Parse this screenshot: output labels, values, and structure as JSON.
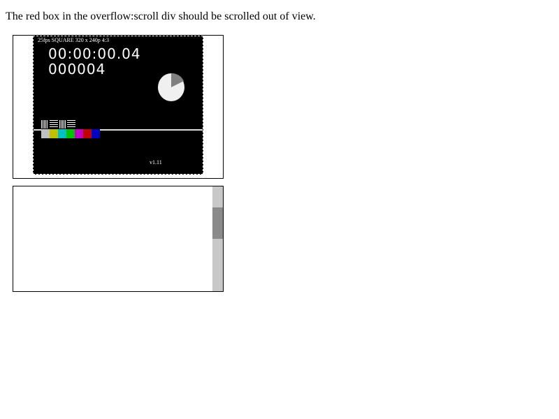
{
  "instruction": "The red box in the overflow:scroll div should be scrolled out of view.",
  "video": {
    "meta_label": "25fps SQUARE 320 x 240p 4:3",
    "timecode": "00:00:00.04",
    "frame_count": "000004",
    "version": "v1.11",
    "colors": {
      "background": "#000000",
      "pie_fill": "#f0f0f0",
      "pie_slice": "#808080",
      "color_bars": [
        "#c0c0c0",
        "#c0c000",
        "#00c0c0",
        "#00c000",
        "#c000c0",
        "#c00000",
        "#0000c0"
      ]
    }
  },
  "scroll_box": {
    "scrollbar": {
      "track_color": "#c8c8c8",
      "thumb_color": "#8a8a8a"
    }
  }
}
